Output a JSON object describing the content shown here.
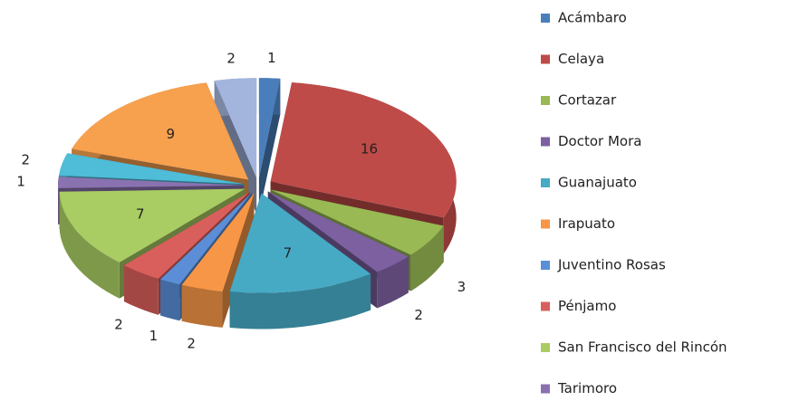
{
  "chart_data": {
    "type": "pie3d",
    "categories": [
      "Acámbaro",
      "Celaya",
      "Cortazar",
      "Doctor Mora",
      "Guanajuato",
      "Irapuato",
      "Juventino Rosas",
      "Pénjamo",
      "San Francisco del Rincón",
      "Tarimoro",
      null,
      null,
      null
    ],
    "values": [
      1,
      16,
      3,
      2,
      7,
      2,
      1,
      2,
      7,
      1,
      2,
      9,
      2
    ],
    "colors": [
      "#4a7ebb",
      "#be4b48",
      "#98b954",
      "#7d60a0",
      "#46aac5",
      "#f79646",
      "#5b8ed6",
      "#d95f5c",
      "#a9cc63",
      "#8a72b0",
      "#4fbcd8",
      "#f7a04e",
      "#a3b5dd"
    ]
  }
}
